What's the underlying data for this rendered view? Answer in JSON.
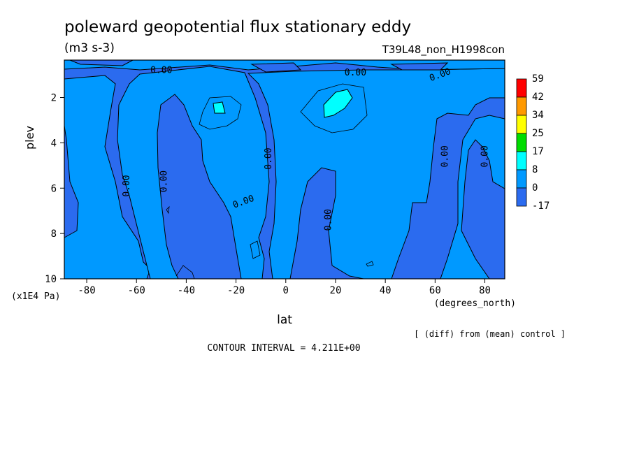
{
  "chart_data": {
    "type": "heatmap",
    "title": "poleward geopotential flux stationary eddy",
    "units": "(m3 s-3)",
    "run_label": "T39L48_non_H1998con",
    "xlabel": "lat",
    "x_units": "(degrees_north)",
    "ylabel": "plev",
    "y_units": "(x1E4 Pa)",
    "x_ticks": [
      "-80",
      "-60",
      "-40",
      "-20",
      "0",
      "20",
      "40",
      "60",
      "80"
    ],
    "x_tick_values": [
      -80,
      -60,
      -40,
      -20,
      0,
      20,
      40,
      60,
      80
    ],
    "y_ticks": [
      "2",
      "4",
      "6",
      "8",
      "10"
    ],
    "y_tick_values": [
      2,
      4,
      6,
      8,
      10
    ],
    "xlim": [
      -89,
      88
    ],
    "ylim": [
      10,
      0.35
    ],
    "colorbar": {
      "labels": [
        "59",
        "42",
        "34",
        "25",
        "17",
        "8",
        "0",
        "-17"
      ],
      "colors": [
        "#ff0000",
        "#ff9900",
        "#ffff00",
        "#00dd00",
        "#00ffff",
        "#0099ff",
        "#2b6bef"
      ]
    },
    "contour_labels": [
      "0.00",
      "0.00",
      "0.00",
      "0.00",
      "0.00",
      "0.00",
      "0.00",
      "0.00",
      "0.00",
      "0.00"
    ],
    "contour_label_values": [
      0,
      0,
      0,
      0,
      0,
      0,
      0,
      0,
      0,
      0
    ],
    "contour_label_lat": [
      -50,
      28,
      62,
      -64,
      -49,
      -17,
      -7,
      17,
      64,
      80
    ],
    "contour_label_plev": [
      0.8,
      0.9,
      1.0,
      5.9,
      5.7,
      6.6,
      4.7,
      7.4,
      4.6,
      4.6
    ],
    "contour_label_angle": [
      0,
      0,
      -20,
      -90,
      -90,
      -20,
      -90,
      -90,
      -90,
      -90
    ],
    "contour_interval_note": "CONTOUR INTERVAL = 4.211E+00",
    "comparison_note": "[ (diff) from (mean) control ]",
    "regions": {
      "negative_lat_ranges_near_surface": [
        [
          -89,
          -82
        ],
        [
          -60,
          -37
        ],
        [
          -15,
          0
        ],
        [
          8,
          30
        ],
        [
          50,
          70
        ],
        [
          80,
          88
        ]
      ],
      "positive_max_patches_plev": [
        [
          2.1,
          2.6
        ],
        [
          1.5,
          2.6
        ]
      ],
      "positive_max_patches_lat": [
        [
          -29,
          -25
        ],
        [
          15,
          27
        ]
      ]
    }
  }
}
